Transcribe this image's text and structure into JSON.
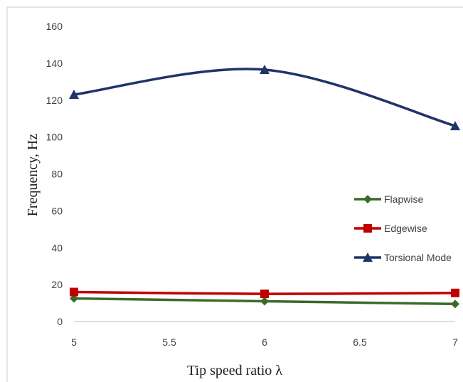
{
  "chart_data": {
    "type": "line",
    "xlabel": "Tip speed ratio λ",
    "ylabel": "Frequency, Hz",
    "x": [
      5,
      6,
      7
    ],
    "xlim": [
      5,
      7
    ],
    "ylim": [
      0,
      160
    ],
    "xticks": [
      "5",
      "5.5",
      "6",
      "6.5",
      "7"
    ],
    "yticks": [
      "0",
      "20",
      "40",
      "60",
      "80",
      "100",
      "120",
      "140",
      "160"
    ],
    "grid": false,
    "legend_position": "right",
    "series": [
      {
        "name": "Flapwise",
        "values": [
          12.5,
          11,
          9.5
        ],
        "color": "#3b6b27",
        "marker": "diamond"
      },
      {
        "name": "Edgewise",
        "values": [
          16,
          15,
          15.5
        ],
        "color": "#c00000",
        "marker": "square"
      },
      {
        "name": "Torsional Mode",
        "values": [
          123,
          136.5,
          106
        ],
        "color": "#1f3468",
        "marker": "triangle"
      }
    ]
  }
}
